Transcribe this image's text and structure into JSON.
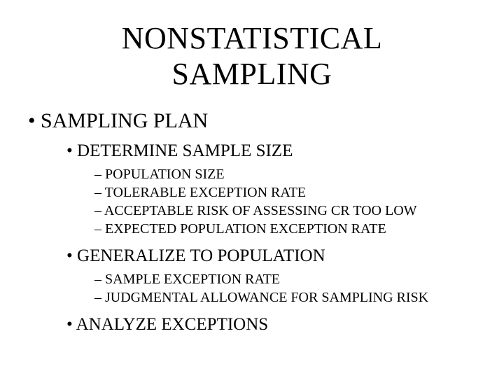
{
  "title_line1": "NONSTATISTICAL",
  "title_line2": "SAMPLING",
  "level1": {
    "item1": "SAMPLING PLAN"
  },
  "level2": {
    "item1": "DETERMINE SAMPLE SIZE",
    "item2": "GENERALIZE TO POPULATION",
    "item3": "ANALYZE EXCEPTIONS"
  },
  "level3a": {
    "item1": "POPULATION SIZE",
    "item2": "TOLERABLE EXCEPTION RATE",
    "item3": "ACCEPTABLE RISK OF ASSESSING CR TOO LOW",
    "item4": "EXPECTED POPULATION EXCEPTION RATE"
  },
  "level3b": {
    "item1": "SAMPLE EXCEPTION RATE",
    "item2": "JUDGMENTAL ALLOWANCE FOR SAMPLING RISK"
  },
  "colors": {
    "text": "#000000",
    "background": "#ffffff"
  },
  "fonts": {
    "family": "Times New Roman",
    "title_size_pt": 44,
    "level1_size_pt": 30,
    "level2_size_pt": 25,
    "level3_size_pt": 20
  }
}
